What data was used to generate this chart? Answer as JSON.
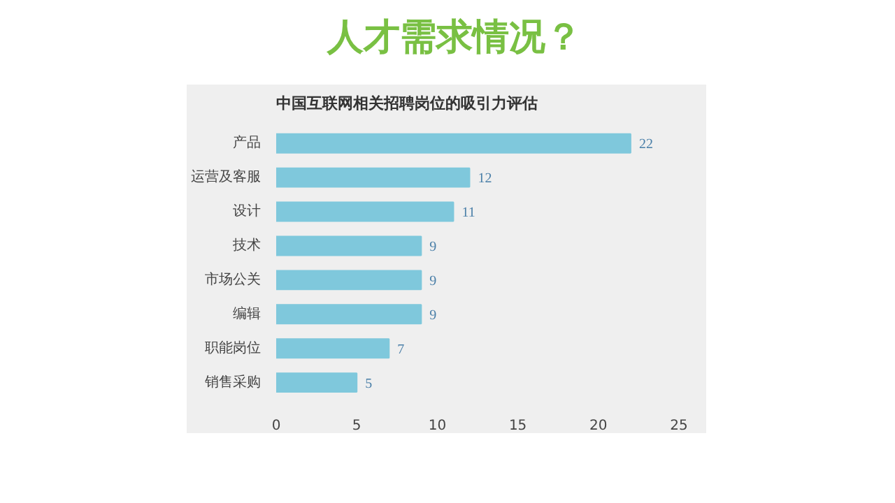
{
  "chart_data": {
    "type": "bar",
    "orientation": "horizontal",
    "title": "人才需求情况？",
    "subtitle": "中国互联网相关招聘岗位的吸引力评估",
    "categories": [
      "产品",
      "运营及客服",
      "设计",
      "技术",
      "市场公关",
      "编辑",
      "职能岗位",
      "销售采购"
    ],
    "values": [
      22,
      12,
      11,
      9,
      9,
      9,
      7,
      5
    ],
    "color": "#7fc8dc",
    "xlim": [
      0,
      25
    ],
    "xticks": [
      0,
      5,
      10,
      15,
      20,
      25
    ],
    "data_labels": true,
    "grid": false
  }
}
